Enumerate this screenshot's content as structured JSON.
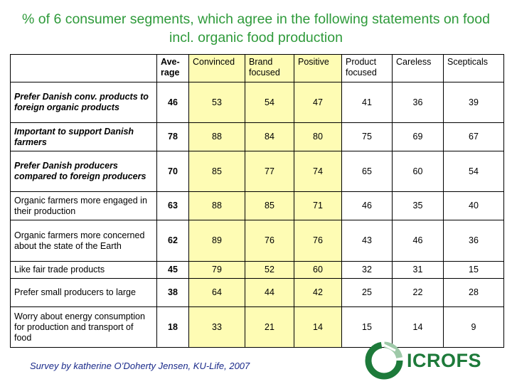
{
  "title": "% of 6 consumer segments, which agree in the following statements on food incl. organic food production",
  "columns": [
    "Ave-rage",
    "Convinced",
    "Brand focused",
    "Positive",
    "Product focused",
    "Careless",
    "Scepticals"
  ],
  "rows": [
    {
      "label": "Prefer Danish conv. products to foreign organic products",
      "avg": "46",
      "values": [
        "53",
        "54",
        "47",
        "41",
        "36",
        "39"
      ]
    },
    {
      "label": "Important to support Danish farmers",
      "avg": "78",
      "values": [
        "88",
        "84",
        "80",
        "75",
        "69",
        "67"
      ]
    },
    {
      "label": "Prefer Danish  producers compared to foreign producers",
      "avg": "70",
      "values": [
        "85",
        "77",
        "74",
        "65",
        "60",
        "54"
      ]
    },
    {
      "label": "Organic farmers more engaged in their production",
      "avg": "63",
      "values": [
        "88",
        "85",
        "71",
        "46",
        "35",
        "40"
      ]
    },
    {
      "label": "Organic farmers more concerned about the state of the Earth",
      "avg": "62",
      "values": [
        "89",
        "76",
        "76",
        "43",
        "46",
        "36"
      ]
    },
    {
      "label": "Like fair trade products",
      "avg": "45",
      "values": [
        "79",
        "52",
        "60",
        "32",
        "31",
        "15"
      ]
    },
    {
      "label": "Prefer small  producers to large",
      "avg": "38",
      "values": [
        "64",
        "44",
        "42",
        "25",
        "22",
        "28"
      ]
    },
    {
      "label": "Worry about energy consumption for production and transport of food",
      "avg": "18",
      "values": [
        "33",
        "21",
        "14",
        "15",
        "14",
        "9"
      ]
    }
  ],
  "footer": "Survey by katherine O’Doherty Jensen, KU-Life, 2007",
  "logo": {
    "text": "ICROFS",
    "icon": "icrofs-logo-icon"
  },
  "colors": {
    "title": "#2e9a3a",
    "highlight": "#fefcb4",
    "footer": "#1a2a8a",
    "logo": "#1d7a3a"
  }
}
